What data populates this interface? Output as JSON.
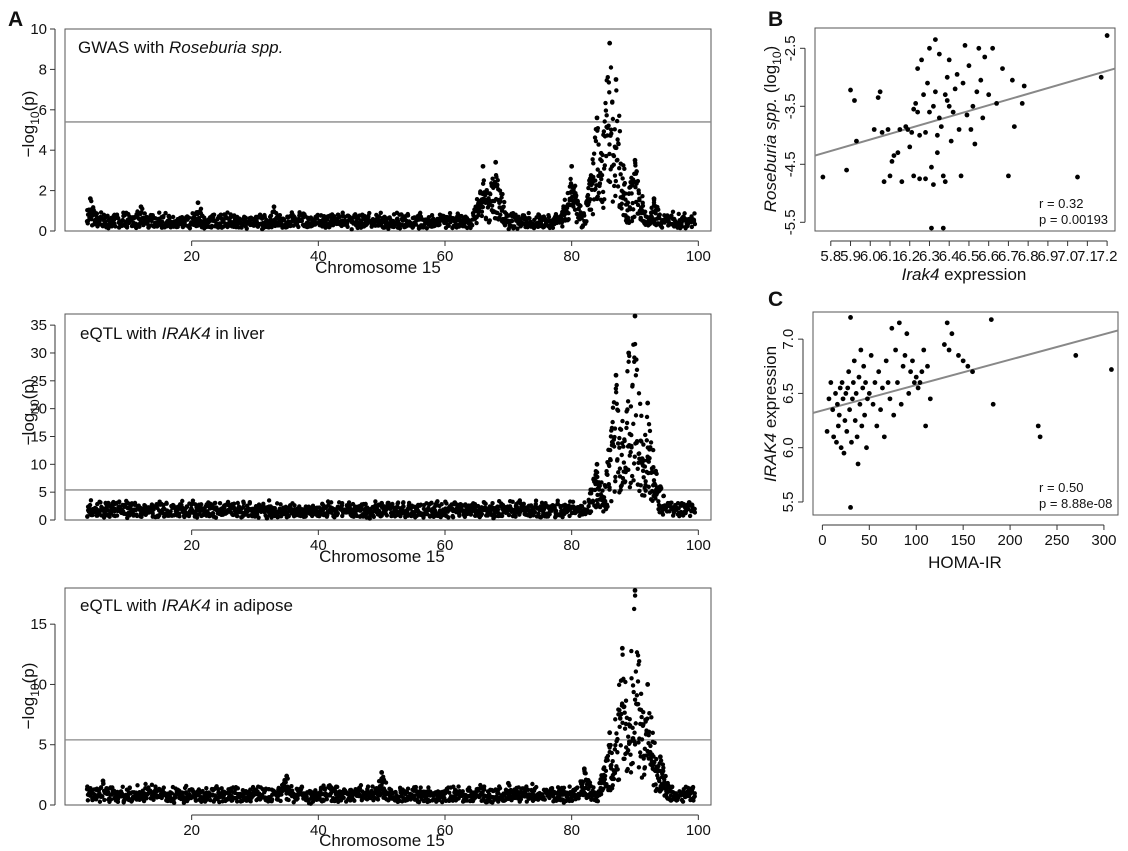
{
  "figure": {
    "panels": [
      "A",
      "B",
      "C"
    ]
  },
  "chart_data": [
    {
      "id": "a1",
      "type": "scatter",
      "panel_letter": "A",
      "title": "GWAS with Roseburia spp.",
      "title_plain": "GWAS with ",
      "title_italic": "Roseburia spp.",
      "xlabel": "Chromosome 15",
      "ylabel": "−log10(p)",
      "ylabel_main": "−log",
      "ylabel_sub": "10",
      "ylabel_paren": "(p)",
      "xlim": [
        0,
        102
      ],
      "ylim": [
        0,
        10
      ],
      "xticks": [
        20,
        40,
        60,
        80,
        100
      ],
      "yticks": [
        0,
        2,
        4,
        6,
        8,
        10
      ],
      "threshold": 5.4,
      "grid": false,
      "peaks": [
        [
          4,
          1.6
        ],
        [
          12,
          1.2
        ],
        [
          21,
          1.4
        ],
        [
          33,
          1.2
        ],
        [
          66,
          3.2
        ],
        [
          68,
          3.4
        ],
        [
          80,
          3.2
        ],
        [
          84,
          5.6
        ],
        [
          86,
          9.3
        ],
        [
          87,
          7.5
        ],
        [
          90,
          3.5
        ],
        [
          93,
          1.6
        ]
      ]
    },
    {
      "id": "a2",
      "type": "scatter",
      "title": "eQTL with IRAK4 in liver",
      "title_plain": "eQTL with ",
      "title_italic": "IRAK4",
      "title_tail": " in liver",
      "xlabel": "Chromosome 15",
      "ylabel": "−log10(p)",
      "ylabel_main": "−log",
      "ylabel_sub": "10",
      "ylabel_paren": "(p)",
      "xlim": [
        0,
        102
      ],
      "ylim": [
        0,
        37
      ],
      "xticks": [
        20,
        40,
        60,
        80,
        100
      ],
      "yticks": [
        0,
        5,
        10,
        15,
        20,
        25,
        30,
        35
      ],
      "threshold": 5.4,
      "grid": false,
      "peaks": [
        [
          30,
          2
        ],
        [
          50,
          3
        ],
        [
          76,
          2.5
        ],
        [
          84,
          10
        ],
        [
          87,
          26
        ],
        [
          89,
          30
        ],
        [
          90,
          37
        ],
        [
          92,
          21
        ],
        [
          94,
          6
        ]
      ]
    },
    {
      "id": "a3",
      "type": "scatter",
      "title": "eQTL with IRAK4 in adipose",
      "title_plain": "eQTL with ",
      "title_italic": "IRAK4",
      "title_tail": " in adipose",
      "xlabel": "Chromosome 15",
      "ylabel": "−log10(p)",
      "ylabel_main": "−log",
      "ylabel_sub": "10",
      "ylabel_paren": "(p)",
      "xlim": [
        0,
        102
      ],
      "ylim": [
        0,
        18
      ],
      "xticks": [
        20,
        40,
        60,
        80,
        100
      ],
      "yticks": [
        0,
        5,
        10,
        15
      ],
      "threshold": 5.4,
      "grid": false,
      "peaks": [
        [
          6,
          2
        ],
        [
          35,
          2.4
        ],
        [
          50,
          2.7
        ],
        [
          70,
          1.8
        ],
        [
          82,
          3
        ],
        [
          86,
          6
        ],
        [
          88,
          13
        ],
        [
          90,
          17.8
        ],
        [
          92,
          10
        ],
        [
          94,
          4
        ]
      ]
    },
    {
      "id": "b",
      "type": "scatter",
      "panel_letter": "B",
      "xlabel": "Irak4 expression",
      "xlabel_italic": "Irak4",
      "xlabel_tail": " expression",
      "ylabel": "Roseburia spp. (log10)",
      "ylabel_italic": "Roseburia spp.",
      "ylabel_main": " (log",
      "ylabel_sub": "10",
      "ylabel_paren": ")",
      "xlim": [
        5.72,
        7.24
      ],
      "ylim": [
        -5.65,
        -2.15
      ],
      "xticks": [
        5.8,
        5.9,
        6.0,
        6.1,
        6.2,
        6.3,
        6.4,
        6.5,
        6.6,
        6.7,
        6.8,
        6.9,
        7.0,
        7.1,
        7.2
      ],
      "yticks": [
        -5.5,
        -4.5,
        -3.5,
        -2.5
      ],
      "fit_line": [
        [
          5.72,
          -4.35
        ],
        [
          7.24,
          -2.85
        ]
      ],
      "stats": {
        "r": "r = 0.32",
        "p": "p = 0.00193"
      },
      "grid": false,
      "points": [
        [
          5.76,
          -4.72
        ],
        [
          5.88,
          -4.6
        ],
        [
          5.9,
          -3.22
        ],
        [
          5.92,
          -3.4
        ],
        [
          5.93,
          -4.1
        ],
        [
          6.02,
          -3.9
        ],
        [
          6.04,
          -3.35
        ],
        [
          6.05,
          -3.25
        ],
        [
          6.06,
          -3.95
        ],
        [
          6.07,
          -4.8
        ],
        [
          6.09,
          -3.9
        ],
        [
          6.1,
          -4.7
        ],
        [
          6.11,
          -4.45
        ],
        [
          6.12,
          -4.35
        ],
        [
          6.14,
          -4.3
        ],
        [
          6.15,
          -3.9
        ],
        [
          6.16,
          -4.8
        ],
        [
          6.18,
          -3.85
        ],
        [
          6.19,
          -3.9
        ],
        [
          6.2,
          -4.2
        ],
        [
          6.21,
          -3.95
        ],
        [
          6.22,
          -3.55
        ],
        [
          6.22,
          -4.7
        ],
        [
          6.23,
          -3.45
        ],
        [
          6.24,
          -2.85
        ],
        [
          6.24,
          -3.6
        ],
        [
          6.25,
          -4.0
        ],
        [
          6.25,
          -4.75
        ],
        [
          6.26,
          -2.7
        ],
        [
          6.27,
          -3.3
        ],
        [
          6.28,
          -3.95
        ],
        [
          6.28,
          -4.75
        ],
        [
          6.29,
          -3.1
        ],
        [
          6.3,
          -2.5
        ],
        [
          6.3,
          -3.6
        ],
        [
          6.31,
          -4.55
        ],
        [
          6.31,
          -5.6
        ],
        [
          6.32,
          -3.5
        ],
        [
          6.32,
          -4.85
        ],
        [
          6.33,
          -2.35
        ],
        [
          6.33,
          -3.25
        ],
        [
          6.34,
          -4.3
        ],
        [
          6.34,
          -4.0
        ],
        [
          6.35,
          -3.7
        ],
        [
          6.35,
          -2.6
        ],
        [
          6.36,
          -3.85
        ],
        [
          6.37,
          -4.7
        ],
        [
          6.37,
          -5.6
        ],
        [
          6.38,
          -3.3
        ],
        [
          6.38,
          -4.8
        ],
        [
          6.39,
          -3.0
        ],
        [
          6.39,
          -3.4
        ],
        [
          6.4,
          -3.5
        ],
        [
          6.4,
          -2.7
        ],
        [
          6.41,
          -4.1
        ],
        [
          6.42,
          -3.6
        ],
        [
          6.43,
          -3.2
        ],
        [
          6.44,
          -2.95
        ],
        [
          6.45,
          -3.9
        ],
        [
          6.46,
          -4.7
        ],
        [
          6.47,
          -3.1
        ],
        [
          6.48,
          -2.45
        ],
        [
          6.49,
          -3.65
        ],
        [
          6.5,
          -2.8
        ],
        [
          6.51,
          -3.9
        ],
        [
          6.52,
          -3.5
        ],
        [
          6.53,
          -4.15
        ],
        [
          6.54,
          -3.25
        ],
        [
          6.55,
          -2.5
        ],
        [
          6.56,
          -3.05
        ],
        [
          6.57,
          -3.7
        ],
        [
          6.58,
          -2.65
        ],
        [
          6.6,
          -3.3
        ],
        [
          6.62,
          -2.5
        ],
        [
          6.64,
          -3.45
        ],
        [
          6.67,
          -2.85
        ],
        [
          6.7,
          -4.7
        ],
        [
          6.72,
          -3.05
        ],
        [
          6.73,
          -3.85
        ],
        [
          6.77,
          -3.45
        ],
        [
          6.78,
          -3.15
        ],
        [
          7.05,
          -4.72
        ],
        [
          7.17,
          -3.0
        ],
        [
          7.2,
          -2.28
        ]
      ]
    },
    {
      "id": "c",
      "type": "scatter",
      "panel_letter": "C",
      "xlabel": "HOMA-IR",
      "ylabel": "IRAK4 expression",
      "ylabel_italic": "IRAK4",
      "ylabel_tail": " expression",
      "xlim": [
        -10,
        315
      ],
      "ylim": [
        5.38,
        7.25
      ],
      "xticks": [
        0,
        50,
        100,
        150,
        200,
        250,
        300
      ],
      "yticks": [
        5.5,
        6.0,
        6.5,
        7.0
      ],
      "fit_line": [
        [
          -10,
          6.32
        ],
        [
          315,
          7.08
        ]
      ],
      "stats": {
        "r": "r = 0.50",
        "p": "p = 8.88e-08"
      },
      "grid": false,
      "points": [
        [
          5,
          6.15
        ],
        [
          7,
          6.45
        ],
        [
          9,
          6.6
        ],
        [
          11,
          6.35
        ],
        [
          12,
          6.1
        ],
        [
          14,
          6.5
        ],
        [
          15,
          6.05
        ],
        [
          16,
          6.4
        ],
        [
          17,
          6.2
        ],
        [
          18,
          6.3
        ],
        [
          19,
          6.55
        ],
        [
          20,
          6.0
        ],
        [
          21,
          6.6
        ],
        [
          22,
          6.45
        ],
        [
          23,
          5.95
        ],
        [
          24,
          6.25
        ],
        [
          25,
          6.5
        ],
        [
          26,
          6.15
        ],
        [
          27,
          6.55
        ],
        [
          28,
          6.7
        ],
        [
          29,
          6.35
        ],
        [
          30,
          7.2
        ],
        [
          30,
          5.45
        ],
        [
          31,
          6.05
        ],
        [
          32,
          6.45
        ],
        [
          33,
          6.6
        ],
        [
          34,
          6.8
        ],
        [
          35,
          6.25
        ],
        [
          36,
          6.5
        ],
        [
          37,
          6.1
        ],
        [
          38,
          5.85
        ],
        [
          39,
          6.65
        ],
        [
          40,
          6.4
        ],
        [
          41,
          6.9
        ],
        [
          42,
          6.2
        ],
        [
          43,
          6.55
        ],
        [
          44,
          6.75
        ],
        [
          45,
          6.3
        ],
        [
          46,
          6.6
        ],
        [
          47,
          6.0
        ],
        [
          48,
          6.45
        ],
        [
          50,
          6.5
        ],
        [
          52,
          6.85
        ],
        [
          54,
          6.4
        ],
        [
          56,
          6.6
        ],
        [
          58,
          6.2
        ],
        [
          60,
          6.7
        ],
        [
          62,
          6.35
        ],
        [
          64,
          6.55
        ],
        [
          66,
          6.1
        ],
        [
          68,
          6.8
        ],
        [
          70,
          6.6
        ],
        [
          72,
          6.45
        ],
        [
          74,
          7.1
        ],
        [
          76,
          6.3
        ],
        [
          78,
          6.9
        ],
        [
          80,
          6.6
        ],
        [
          82,
          7.15
        ],
        [
          84,
          6.4
        ],
        [
          86,
          6.75
        ],
        [
          88,
          6.85
        ],
        [
          90,
          7.05
        ],
        [
          92,
          6.5
        ],
        [
          94,
          6.7
        ],
        [
          96,
          6.8
        ],
        [
          98,
          6.6
        ],
        [
          100,
          6.65
        ],
        [
          102,
          6.55
        ],
        [
          104,
          6.6
        ],
        [
          106,
          6.7
        ],
        [
          108,
          6.9
        ],
        [
          110,
          6.2
        ],
        [
          112,
          6.75
        ],
        [
          115,
          6.45
        ],
        [
          130,
          6.95
        ],
        [
          133,
          7.15
        ],
        [
          135,
          6.9
        ],
        [
          138,
          7.05
        ],
        [
          145,
          6.85
        ],
        [
          150,
          6.8
        ],
        [
          155,
          6.75
        ],
        [
          160,
          6.7
        ],
        [
          180,
          7.18
        ],
        [
          182,
          6.4
        ],
        [
          230,
          6.2
        ],
        [
          232,
          6.1
        ],
        [
          270,
          6.85
        ],
        [
          308,
          6.72
        ]
      ]
    }
  ]
}
